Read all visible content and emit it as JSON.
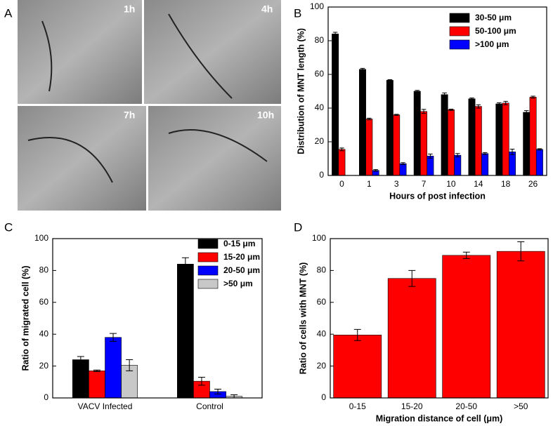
{
  "panel_a": {
    "label": "A",
    "images": [
      "1h",
      "4h",
      "7h",
      "10h"
    ]
  },
  "chart_data": [
    {
      "type": "bar",
      "panel": "B",
      "x_label": "Hours of post infection",
      "y_label": "Distribution of MNT length (%)",
      "categories": [
        "0",
        "1",
        "3",
        "7",
        "10",
        "14",
        "18",
        "26"
      ],
      "series": [
        {
          "name": "30-50 μm",
          "color": "#000000",
          "values": [
            84,
            63,
            56.5,
            50,
            48,
            45.5,
            42.5,
            37.5
          ],
          "errors": [
            1,
            0.6,
            0.4,
            0.5,
            1,
            0.5,
            0.6,
            1
          ]
        },
        {
          "name": "50-100 μm",
          "color": "#ff0000",
          "values": [
            15.5,
            33.5,
            36,
            38,
            39,
            41,
            43,
            46.5
          ],
          "errors": [
            0.8,
            0.5,
            0.3,
            1.2,
            0.4,
            1,
            1,
            0.6
          ]
        },
        {
          "name": ">100 μm",
          "color": "#0000ff",
          "values": [
            null,
            3,
            7,
            11.5,
            12,
            13,
            14,
            15.5
          ],
          "errors": [
            null,
            0.5,
            0.6,
            1.2,
            1,
            0.6,
            1.6,
            0.4
          ]
        }
      ],
      "ylim": [
        0,
        100
      ],
      "yticks": [
        0,
        20,
        40,
        60,
        80,
        100
      ],
      "legend": "upper right"
    },
    {
      "type": "bar",
      "panel": "C",
      "y_label": "Ratio of migrated cell (%)",
      "categories": [
        "VACV Infected",
        "Control"
      ],
      "series": [
        {
          "name": "0-15 μm",
          "color": "#000000",
          "values": [
            24,
            84
          ],
          "errors": [
            2,
            4
          ]
        },
        {
          "name": "15-20 μm",
          "color": "#ff0000",
          "values": [
            17,
            10.5
          ],
          "errors": [
            0.5,
            2.5
          ]
        },
        {
          "name": "20-50 μm",
          "color": "#0000ff",
          "values": [
            38,
            4
          ],
          "errors": [
            2.5,
            1.5
          ]
        },
        {
          "name": ">50 μm",
          "color": "#c8c8c8",
          "values": [
            20.5,
            1
          ],
          "errors": [
            3.5,
            1
          ]
        }
      ],
      "ylim": [
        0,
        100
      ],
      "yticks": [
        0,
        20,
        40,
        60,
        80,
        100
      ],
      "legend": "upper right"
    },
    {
      "type": "bar",
      "panel": "D",
      "x_label": "Migration distance of cell (μm)",
      "y_label": "Ratio of cells with MNT (%)",
      "categories": [
        "0-15",
        "15-20",
        "20-50",
        ">50"
      ],
      "values": [
        39.5,
        75,
        89.5,
        92
      ],
      "errors": [
        3.5,
        5,
        2,
        6
      ],
      "color": "#ff0000",
      "ylim": [
        0,
        100
      ],
      "yticks": [
        0,
        20,
        40,
        60,
        80,
        100
      ]
    }
  ]
}
